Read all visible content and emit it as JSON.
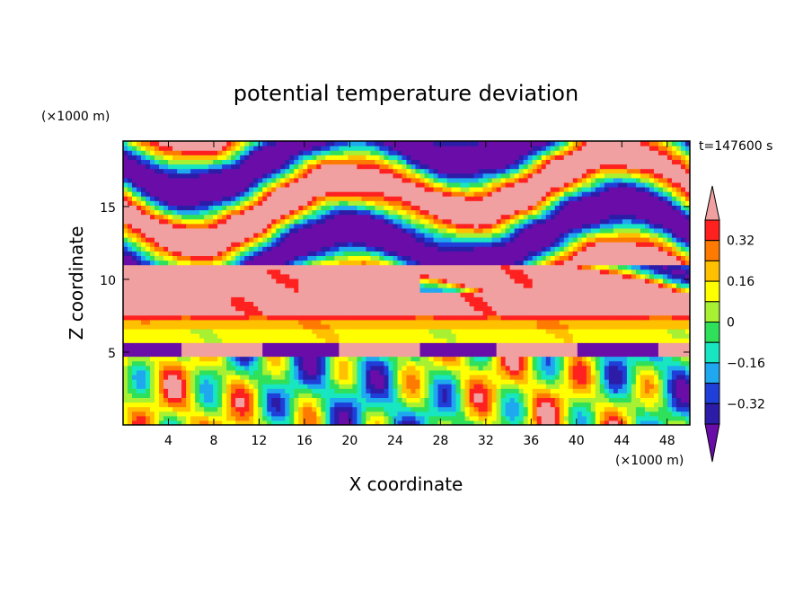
{
  "chart_data": {
    "type": "heatmap",
    "title": "potential temperature deviation",
    "xlabel": "X coordinate",
    "ylabel": "Z coordinate",
    "x_unit": "(×1000 m)",
    "y_unit": "(×1000 m)",
    "time_label": "t=147600 s",
    "xlim": [
      0,
      50
    ],
    "ylim": [
      0,
      19.5
    ],
    "x_ticks": [
      4,
      8,
      12,
      16,
      20,
      24,
      28,
      32,
      36,
      40,
      44,
      48
    ],
    "y_ticks": [
      5,
      10,
      15
    ],
    "colorbar": {
      "levels": [
        -0.4,
        -0.32,
        -0.24,
        -0.16,
        -0.08,
        0,
        0.08,
        0.16,
        0.24,
        0.32,
        0.4
      ],
      "labels": [
        "0.32",
        "0.16",
        "0",
        "−0.16",
        "−0.32"
      ],
      "label_values": [
        0.32,
        0.16,
        0,
        -0.16,
        -0.32
      ],
      "colors_low_to_high": [
        "#6a0da8",
        "#2c1ca8",
        "#1f3fd8",
        "#1fa8f0",
        "#18e6c0",
        "#2ee05a",
        "#a8f032",
        "#ffff00",
        "#ffc000",
        "#ff7a00",
        "#ff2020",
        "#f0a0a0"
      ]
    },
    "field_description_sample_z_layers": [
      {
        "z_range": [
          0,
          5
        ],
        "dominant": "mixed cool/warm convective plumes"
      },
      {
        "z_range": [
          5,
          7.5
        ],
        "dominant": "warm layer"
      },
      {
        "z_range": [
          7.5,
          11
        ],
        "dominant": "warm, patchy"
      },
      {
        "z_range": [
          11,
          19.5
        ],
        "dominant": "alternating warm/cold bands"
      }
    ]
  }
}
